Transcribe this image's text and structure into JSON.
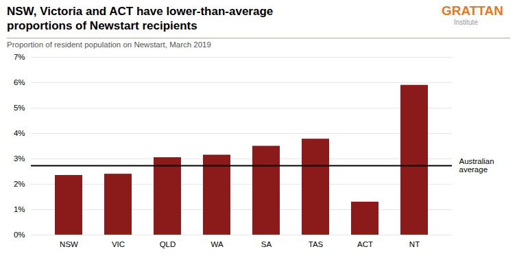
{
  "chart_data": {
    "type": "bar",
    "title": "NSW, Victoria and ACT have lower-than-average\nproportions of Newstart recipients",
    "subtitle": "Proportion of resident population on Newstart, March 2019",
    "categories": [
      "NSW",
      "VIC",
      "QLD",
      "WA",
      "SA",
      "TAS",
      "ACT",
      "NT"
    ],
    "values": [
      0.0235,
      0.024,
      0.0305,
      0.0315,
      0.035,
      0.0378,
      0.013,
      0.059
    ],
    "color": "#8B1A1A",
    "ylim": [
      0.0,
      0.07
    ],
    "yticks": [
      {
        "value": 0.0,
        "label": "0%"
      },
      {
        "value": 0.01,
        "label": "1%"
      },
      {
        "value": 0.02,
        "label": "2%"
      },
      {
        "value": 0.03,
        "label": "3%"
      },
      {
        "value": 0.04,
        "label": "4%"
      },
      {
        "value": 0.05,
        "label": "5%"
      },
      {
        "value": 0.06,
        "label": "6%"
      },
      {
        "value": 0.07,
        "label": "7%"
      }
    ],
    "grid": true,
    "hlines": [
      {
        "y": 0.0273,
        "label": "Australian\naverage",
        "color": "#000000"
      }
    ],
    "annotations": [
      {
        "text": "GRATTAN",
        "color": "#E87722"
      },
      {
        "text": "Institute",
        "color": "#999999"
      }
    ]
  }
}
